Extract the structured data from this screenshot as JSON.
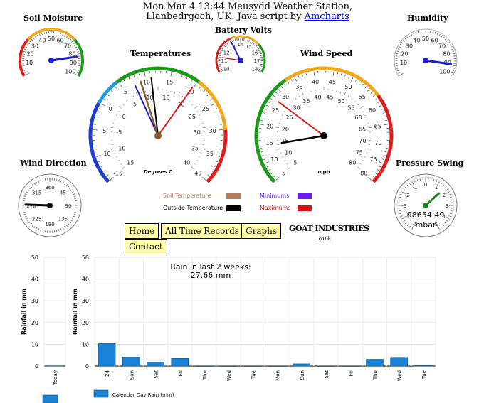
{
  "header": {
    "line1": "Mon Mar 4 13:44 Meusydd Weather Station,",
    "line2": "Llanbedrgoch, UK. Java script by",
    "link": "Amcharts"
  },
  "gauges": {
    "soil_moisture": {
      "title": "Soil Moisture",
      "ticks": [
        "10",
        "20",
        "30",
        "40",
        "50",
        "60",
        "70",
        "80",
        "90",
        "100"
      ],
      "value": 84
    },
    "battery": {
      "title": "Battery Volts",
      "ticks": [
        "10",
        "11",
        "12",
        "13",
        "14",
        "15",
        "16",
        "17",
        "18"
      ],
      "value": 13.1
    },
    "humidity": {
      "title": "Humidity",
      "ticks": [
        "10",
        "20",
        "30",
        "40",
        "50",
        "60",
        "70",
        "80",
        "90",
        "100"
      ],
      "value": 91
    },
    "temperatures": {
      "title": "Temperatures",
      "unit": "Degrees C",
      "outer_ticks": [
        "-15",
        "-10",
        "-5",
        "0",
        "5",
        "10",
        "15",
        "20",
        "25",
        "30",
        "35",
        "40"
      ],
      "inner_ticks": [
        "-15",
        "-10",
        "-5",
        "0",
        "5",
        "10",
        "15",
        "20",
        "25",
        "30",
        "35",
        "40"
      ],
      "soil_temp": 6.0,
      "outside_temp": 8.5,
      "min_temp": 4.5,
      "max_temp": 18.0
    },
    "wind_speed": {
      "title": "Wind Speed",
      "unit": "mph",
      "outer_ticks": [
        "5",
        "10",
        "15",
        "20",
        "25",
        "30",
        "35",
        "40",
        "45",
        "50",
        "55",
        "60",
        "65",
        "70",
        "75",
        "80"
      ],
      "inner_ticks": [
        "5",
        "10",
        "15",
        "20",
        "25",
        "30",
        "35",
        "40",
        "45",
        "50",
        "55",
        "60",
        "65",
        "70",
        "75",
        "80"
      ],
      "speed": 10,
      "gust": 24
    },
    "wind_direction": {
      "title": "Wind Direction",
      "ticks": [
        "45",
        "90",
        "135",
        "180",
        "225",
        "270",
        "315",
        "360"
      ],
      "value": 272
    },
    "pressure_swing": {
      "title": "Pressure Swing",
      "ticks": [
        "-5",
        "-4",
        "-3",
        "-2",
        "-1",
        "0",
        "1",
        "2",
        "3",
        "4",
        "5"
      ],
      "value": 1.6,
      "reading": "98654.49",
      "unit": "mbar"
    }
  },
  "legend": {
    "soil": "Soil Temperature",
    "outside": "Outside Temperature",
    "minimums": "Minimums",
    "maximums": "Maximums",
    "colors": {
      "soil": "#b87a5a",
      "outside": "#000000",
      "minimums": "#6a1aff",
      "maximums": "#e01010"
    }
  },
  "nav": {
    "home": "Home",
    "records": "All Time Records",
    "graphs": "Graphs",
    "contact": "Contact"
  },
  "logo": {
    "text": "GOAT INDUSTRIES",
    "sub": ".co.uk"
  },
  "chart_data": [
    {
      "type": "bar",
      "title": "",
      "xlabel": "",
      "ylabel": "Rainfall in mm",
      "ylim": [
        0,
        50
      ],
      "yticks": [
        "0",
        "10",
        "20",
        "30",
        "40",
        "50"
      ],
      "categories": [
        "Today"
      ],
      "values": [
        0.1
      ],
      "color": "#1a82d6"
    },
    {
      "type": "bar",
      "title": "Rain in last 2 weeks:",
      "subtitle": "27.66 mm",
      "xlabel": "",
      "ylabel": "Rainfall in mm",
      "ylim": [
        0,
        50
      ],
      "yticks": [
        "0",
        "10",
        "20",
        "30",
        "40",
        "50"
      ],
      "categories": [
        "24",
        "Sun",
        "Sat",
        "Fri",
        "Thu",
        "Wed",
        "Tue",
        "Mon",
        "Sun",
        "Sat",
        "Fri",
        "Thu",
        "Wed",
        "Tue"
      ],
      "values": [
        10.4,
        4.1,
        1.7,
        3.5,
        0,
        0,
        0,
        0,
        1.0,
        0,
        0,
        3.1,
        4.0,
        0.2
      ],
      "series": [
        {
          "name": "Calendar Day Rain (mm)",
          "values": [
            10.4,
            4.1,
            1.7,
            3.5,
            0,
            0,
            0,
            0,
            1.0,
            0,
            0,
            3.1,
            4.0,
            0.2
          ]
        }
      ],
      "color": "#1a82d6"
    }
  ]
}
